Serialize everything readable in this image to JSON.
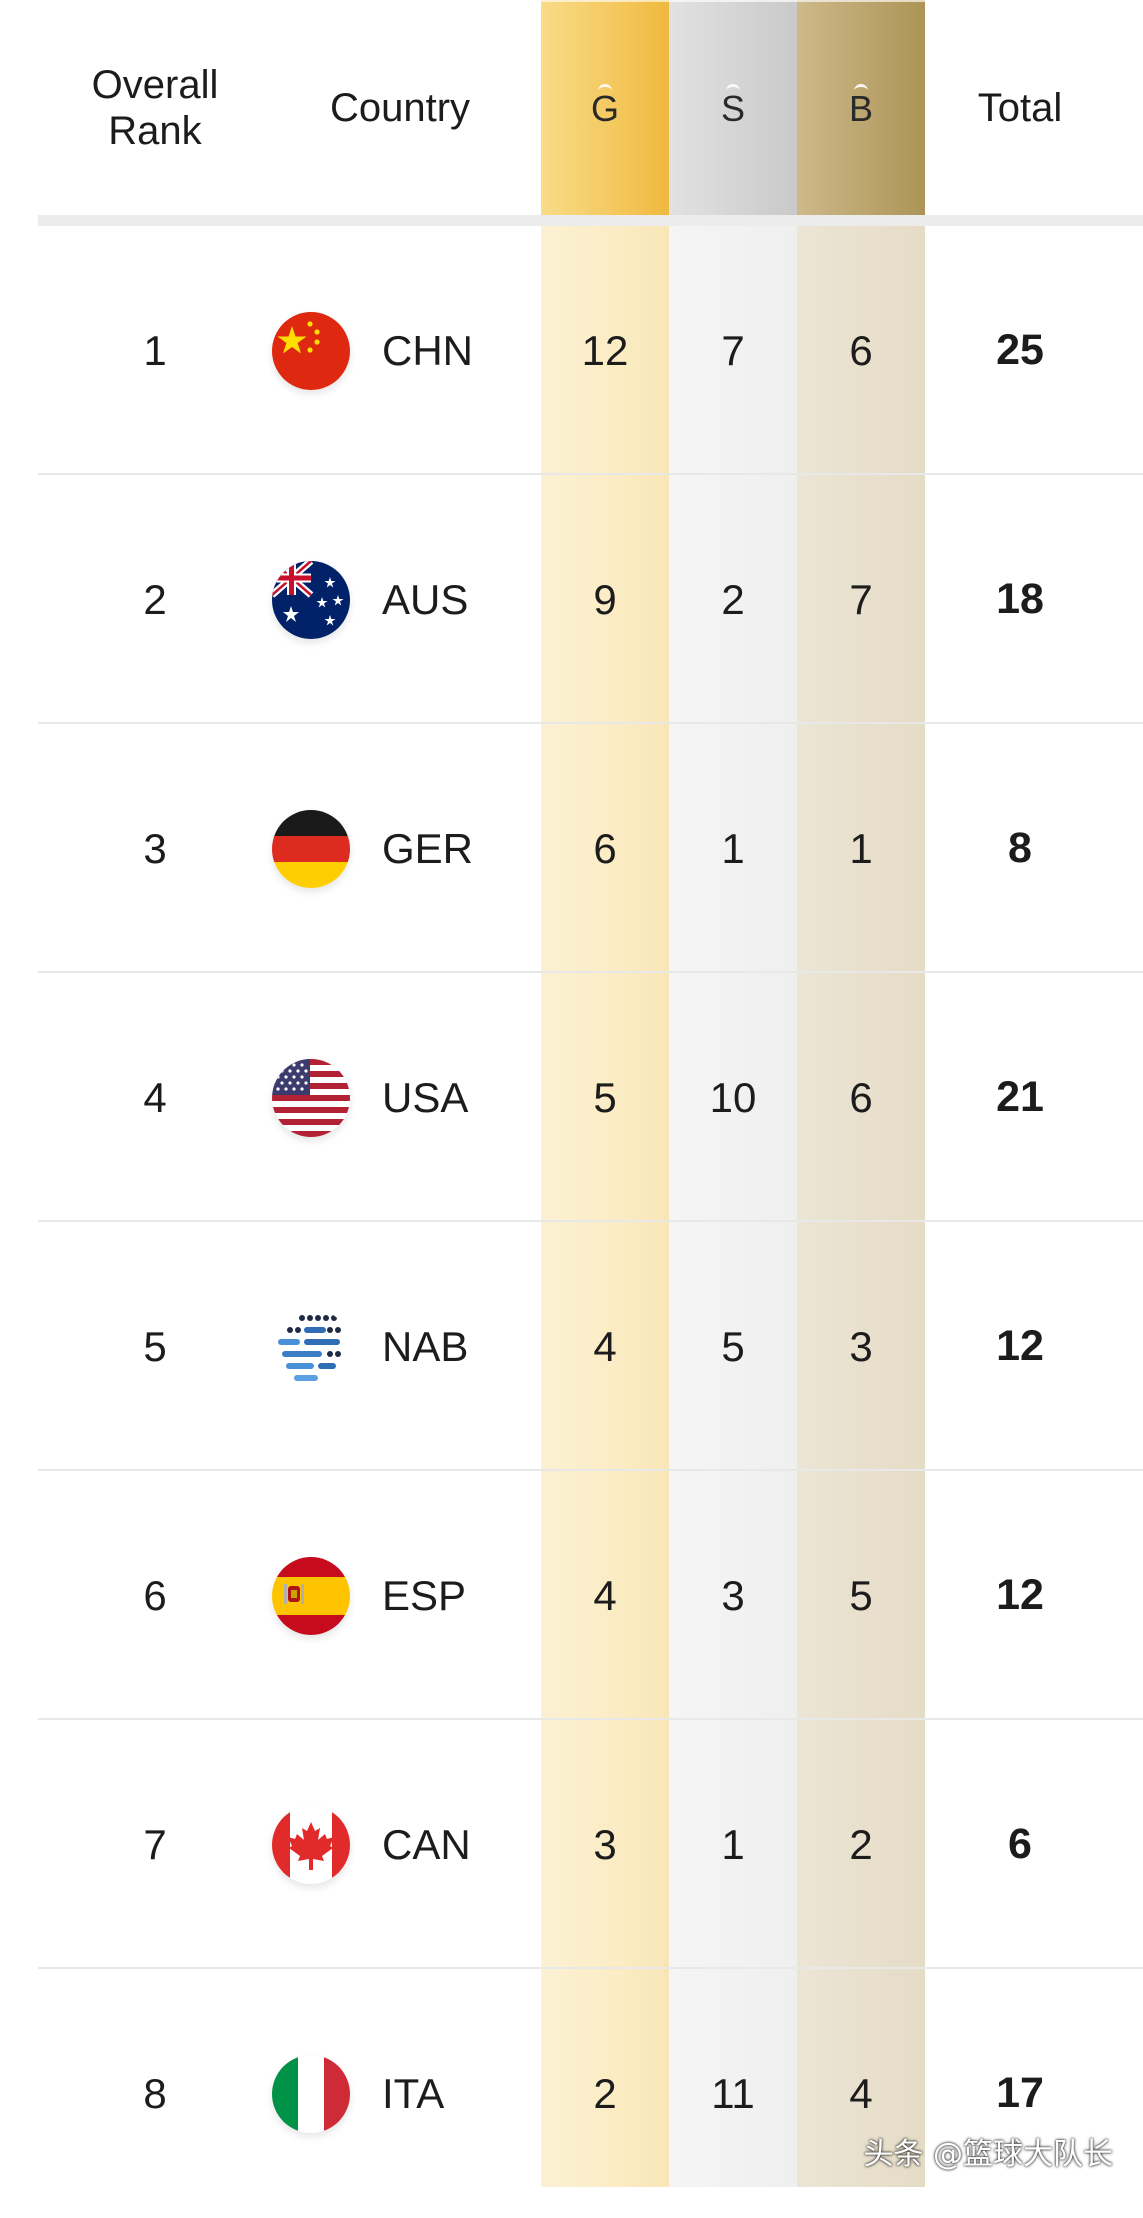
{
  "header": {
    "rank_line1": "Overall",
    "rank_line2": "Rank",
    "country": "Country",
    "gold": "G",
    "silver": "S",
    "bronze": "B",
    "total": "Total"
  },
  "colors": {
    "gold_header": "#f3c455",
    "silver_header": "#c9c9c9",
    "bronze_header": "#ad9456",
    "gold_column": "#fbecc4",
    "silver_column": "#efefef",
    "bronze_column": "#e5dcc6"
  },
  "rows": [
    {
      "rank": "1",
      "flag_icon": "china-flag-icon",
      "code": "CHN",
      "gold": "12",
      "silver": "7",
      "bronze": "6",
      "total": "25"
    },
    {
      "rank": "2",
      "flag_icon": "australia-flag-icon",
      "code": "AUS",
      "gold": "9",
      "silver": "2",
      "bronze": "7",
      "total": "18"
    },
    {
      "rank": "3",
      "flag_icon": "germany-flag-icon",
      "code": "GER",
      "gold": "6",
      "silver": "1",
      "bronze": "1",
      "total": "8"
    },
    {
      "rank": "4",
      "flag_icon": "usa-flag-icon",
      "code": "USA",
      "gold": "5",
      "silver": "10",
      "bronze": "6",
      "total": "21"
    },
    {
      "rank": "5",
      "flag_icon": "nab-flag-icon",
      "code": "NAB",
      "gold": "4",
      "silver": "5",
      "bronze": "3",
      "total": "12"
    },
    {
      "rank": "6",
      "flag_icon": "spain-flag-icon",
      "code": "ESP",
      "gold": "4",
      "silver": "3",
      "bronze": "5",
      "total": "12"
    },
    {
      "rank": "7",
      "flag_icon": "canada-flag-icon",
      "code": "CAN",
      "gold": "3",
      "silver": "1",
      "bronze": "2",
      "total": "6"
    },
    {
      "rank": "8",
      "flag_icon": "italy-flag-icon",
      "code": "ITA",
      "gold": "2",
      "silver": "11",
      "bronze": "4",
      "total": "17"
    }
  ],
  "watermark": "头条 @篮球大队长"
}
